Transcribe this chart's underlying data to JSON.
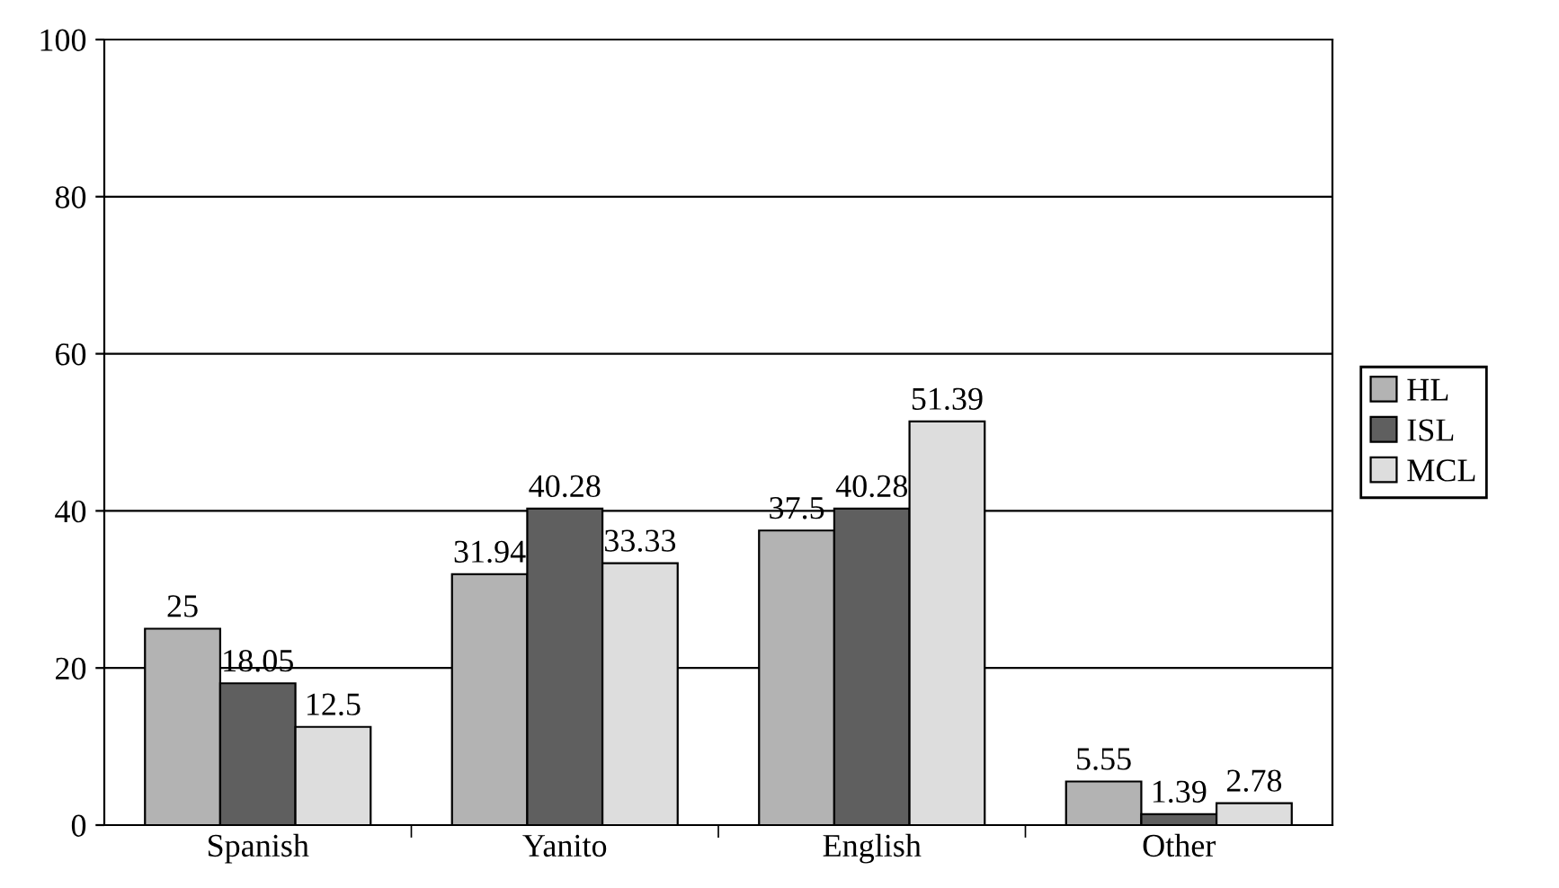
{
  "chart_data": {
    "type": "bar",
    "categories": [
      "Spanish",
      "Yanito",
      "English",
      "Other"
    ],
    "series": [
      {
        "name": "HL",
        "color": "#b3b3b3",
        "values": [
          25,
          31.94,
          37.5,
          5.55
        ]
      },
      {
        "name": "ISL",
        "color": "#5f5f5f",
        "values": [
          18.05,
          40.28,
          40.28,
          1.39
        ]
      },
      {
        "name": "MCL",
        "color": "#dddddd",
        "values": [
          12.5,
          33.33,
          51.39,
          2.78
        ]
      }
    ],
    "ylim": [
      0,
      100
    ],
    "yticks": [
      0,
      20,
      40,
      60,
      80,
      100
    ],
    "grid": "y",
    "legend": "right",
    "data_labels": true
  }
}
